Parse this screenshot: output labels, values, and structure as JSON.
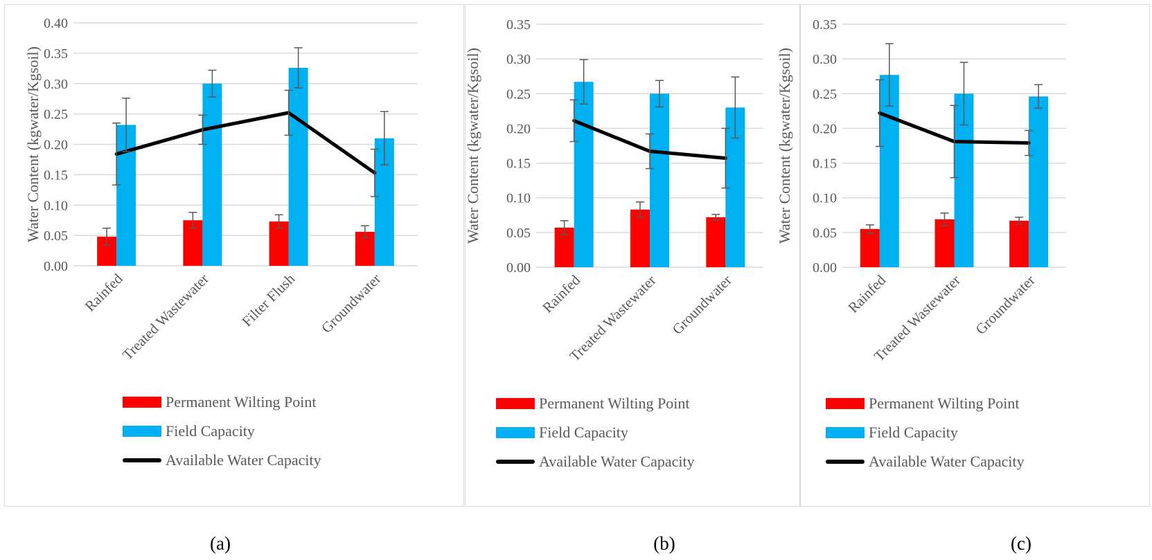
{
  "colors": {
    "pwp": "#ff0000",
    "fc": "#00b0f0",
    "awc": "#000000",
    "grid": "#d9d9d9",
    "error": "#595959"
  },
  "legend": {
    "pwp": "Permanent Wilting Point",
    "fc": "Field Capacity",
    "awc": "Available Water Capacity"
  },
  "chart_data": [
    {
      "type": "bar",
      "panel_label": "(a)",
      "ylabel": "Water Content (kgwater/Kgsoil)",
      "ylim": [
        0,
        0.4
      ],
      "yticks": [
        "0.00",
        "0.05",
        "0.10",
        "0.15",
        "0.20",
        "0.25",
        "0.30",
        "0.35",
        "0.40"
      ],
      "categories": [
        "Rainfed",
        "Treated Wastewater",
        "Filter Flush",
        "Groundwater"
      ],
      "series": [
        {
          "name": "Permanent Wilting Point",
          "kind": "bar",
          "values": [
            0.048,
            0.075,
            0.073,
            0.056
          ],
          "errors": [
            0.014,
            0.013,
            0.011,
            0.01
          ]
        },
        {
          "name": "Field Capacity",
          "kind": "bar",
          "values": [
            0.232,
            0.3,
            0.326,
            0.21
          ],
          "errors": [
            0.044,
            0.022,
            0.033,
            0.044
          ]
        },
        {
          "name": "Available Water Capacity",
          "kind": "line",
          "values": [
            0.184,
            0.224,
            0.252,
            0.153
          ],
          "errors": [
            0.051,
            0.024,
            0.037,
            0.039
          ]
        }
      ],
      "grid": true,
      "legend_position": "bottom"
    },
    {
      "type": "bar",
      "panel_label": "(b)",
      "ylabel": "Water Content (kgwater/Kgsoil)",
      "ylim": [
        0,
        0.35
      ],
      "yticks": [
        "0.00",
        "0.05",
        "0.10",
        "0.15",
        "0.20",
        "0.25",
        "0.30",
        "0.35"
      ],
      "categories": [
        "Rainfed",
        "Treated Wastewater",
        "Groundwater"
      ],
      "series": [
        {
          "name": "Permanent Wilting Point",
          "kind": "bar",
          "values": [
            0.057,
            0.083,
            0.072
          ],
          "errors": [
            0.01,
            0.011,
            0.004
          ]
        },
        {
          "name": "Field Capacity",
          "kind": "bar",
          "values": [
            0.267,
            0.25,
            0.23
          ],
          "errors": [
            0.032,
            0.019,
            0.044
          ]
        },
        {
          "name": "Available Water Capacity",
          "kind": "line",
          "values": [
            0.211,
            0.167,
            0.157
          ],
          "errors": [
            0.03,
            0.025,
            0.043
          ]
        }
      ],
      "grid": true,
      "legend_position": "bottom"
    },
    {
      "type": "bar",
      "panel_label": "(c)",
      "ylabel": "Water Content (kgwater/Kgsoil)",
      "ylim": [
        0,
        0.35
      ],
      "yticks": [
        "0.00",
        "0.05",
        "0.10",
        "0.15",
        "0.20",
        "0.25",
        "0.30",
        "0.35"
      ],
      "categories": [
        "Rainfed",
        "Treated Wastewater",
        "Groundwater"
      ],
      "series": [
        {
          "name": "Permanent Wilting Point",
          "kind": "bar",
          "values": [
            0.055,
            0.069,
            0.067
          ],
          "errors": [
            0.006,
            0.009,
            0.005
          ]
        },
        {
          "name": "Field Capacity",
          "kind": "bar",
          "values": [
            0.277,
            0.25,
            0.246
          ],
          "errors": [
            0.045,
            0.045,
            0.017
          ]
        },
        {
          "name": "Available Water Capacity",
          "kind": "line",
          "values": [
            0.222,
            0.181,
            0.179
          ],
          "errors": [
            0.048,
            0.052,
            0.018
          ]
        }
      ],
      "grid": true,
      "legend_position": "bottom"
    }
  ]
}
